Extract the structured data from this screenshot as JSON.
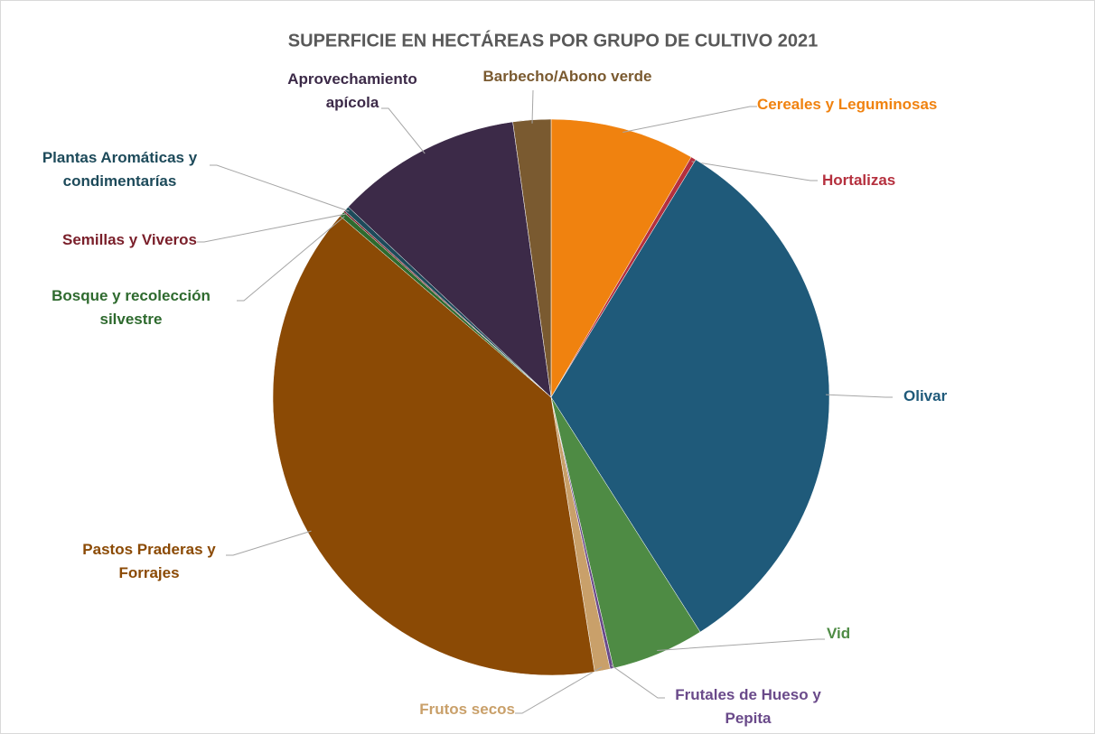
{
  "chart_data": {
    "type": "pie",
    "title": "SUPERFICIE EN HECTÁREAS POR GRUPO DE CULTIVO 2021",
    "categories": [
      "Cereales y Leguminosas",
      "Hortalizas",
      "Olivar",
      "Vid",
      "Frutales de Hueso y Pepita",
      "Frutos secos",
      "Pastos Praderas y Forrajes",
      "Bosque y recolección silvestre",
      "Semillas y Viveros",
      "Plantas Aromáticas y condimentarías",
      "Aprovechamiento apícola",
      "Barbecho/Abono verde"
    ],
    "values": [
      8.4,
      0.3,
      32.3,
      5.4,
      0.2,
      0.9,
      38.8,
      0.3,
      0.1,
      0.3,
      10.8,
      2.2
    ],
    "colors": [
      "#f0820f",
      "#b5303e",
      "#1f5a7a",
      "#4e8b44",
      "#6a4a8a",
      "#c9a06a",
      "#8b4a05",
      "#2e6a2e",
      "#7a1f2a",
      "#1d4a5a",
      "#3c2a48",
      "#7a5a30"
    ]
  }
}
